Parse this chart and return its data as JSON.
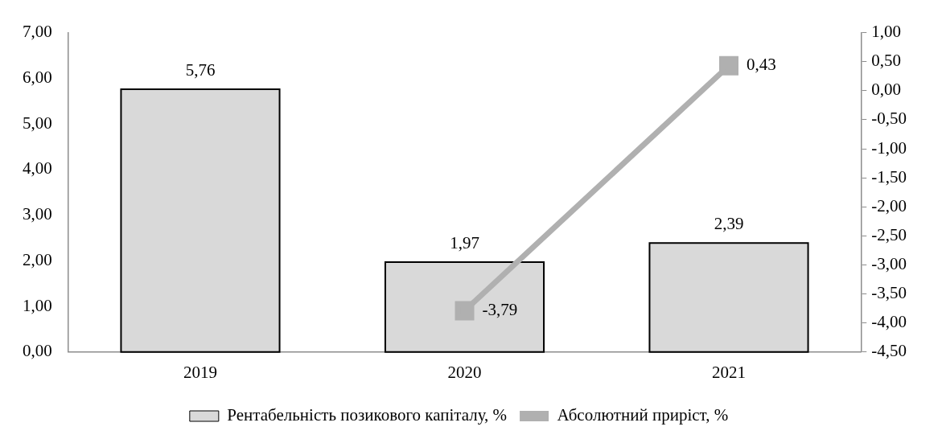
{
  "chart_data": {
    "type": "bar",
    "categories": [
      "2019",
      "2020",
      "2021"
    ],
    "series": [
      {
        "name": "Рентабельність позикового капіталу, %",
        "color": "#d9d9d9",
        "values": [
          5.76,
          1.97,
          2.39
        ],
        "value_labels": [
          "5,76",
          "1,97",
          "2,39"
        ]
      },
      {
        "name": "Абсолютний приріст, %",
        "type": "line",
        "axis": "y2",
        "color": "#b0b0b0",
        "values": [
          null,
          -3.79,
          0.43
        ],
        "value_labels": [
          null,
          "-3,79",
          "0,43"
        ]
      }
    ],
    "ylim": [
      0,
      7
    ],
    "yticks": [
      {
        "value": 0,
        "label": "0,00"
      },
      {
        "value": 1,
        "label": "1,00"
      },
      {
        "value": 2,
        "label": "2,00"
      },
      {
        "value": 3,
        "label": "3,00"
      },
      {
        "value": 4,
        "label": "4,00"
      },
      {
        "value": 5,
        "label": "5,00"
      },
      {
        "value": 6,
        "label": "6,00"
      },
      {
        "value": 7,
        "label": "7,00"
      }
    ],
    "y2lim": [
      -4.5,
      1
    ],
    "y2ticks": [
      {
        "value": -4.5,
        "label": "-4,50"
      },
      {
        "value": -4,
        "label": "-4,00"
      },
      {
        "value": -3.5,
        "label": "-3,50"
      },
      {
        "value": -3,
        "label": "-3,00"
      },
      {
        "value": -2.5,
        "label": "-2,50"
      },
      {
        "value": -2,
        "label": "-2,00"
      },
      {
        "value": -1.5,
        "label": "-1,50"
      },
      {
        "value": -1,
        "label": "-1,00"
      },
      {
        "value": -0.5,
        "label": "-0,50"
      },
      {
        "value": 0,
        "label": "0,00"
      },
      {
        "value": 0.5,
        "label": "0,50"
      },
      {
        "value": 1,
        "label": "1,00"
      }
    ],
    "grid": false,
    "legend": "bottom",
    "marker": "square"
  }
}
